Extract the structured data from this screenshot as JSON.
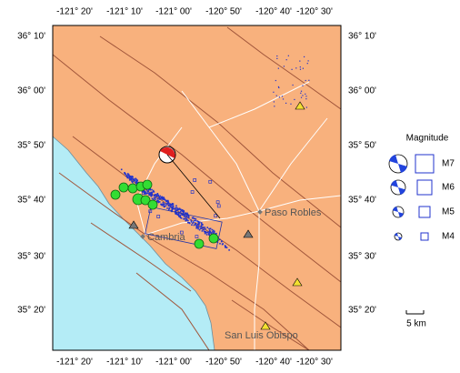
{
  "map": {
    "lon_ticks": [
      "-121° 20'",
      "-121° 10'",
      "-121° 00'",
      "-120° 50'",
      "-120° 40'",
      "-120° 30'"
    ],
    "lat_ticks": [
      "36° 10'",
      "36° 00'",
      "35° 50'",
      "35° 40'",
      "35° 30'",
      "35° 20'"
    ],
    "places": [
      "Paso Robles",
      "Cambria",
      "San Luis Obispo"
    ],
    "legend": {
      "title": "Magnitude",
      "items": [
        "M7",
        "M6",
        "M5",
        "M4"
      ]
    },
    "scale": "5 km"
  }
}
